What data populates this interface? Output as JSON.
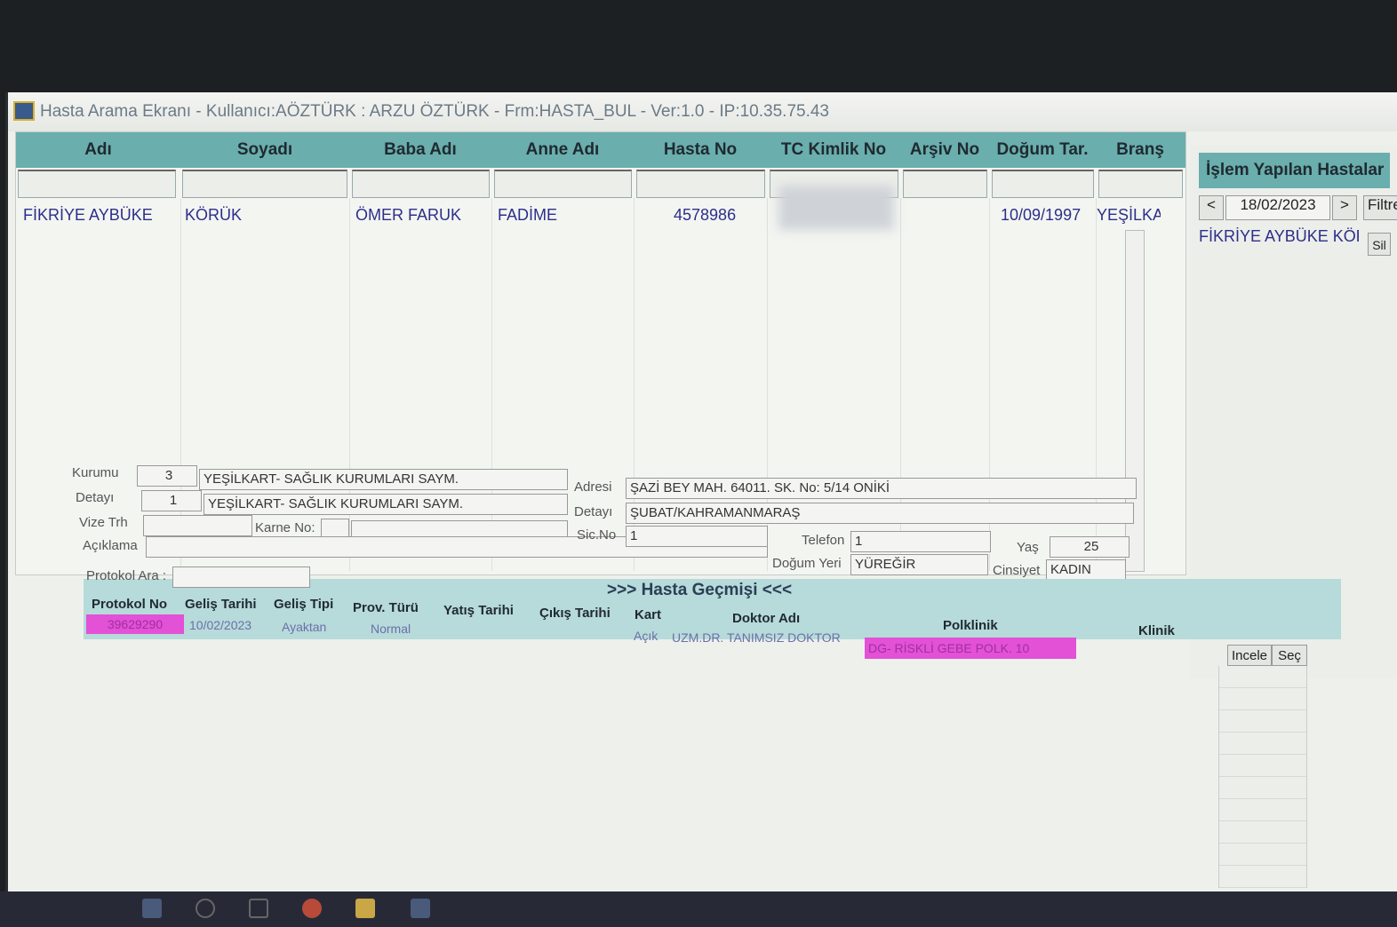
{
  "window": {
    "title": "Hasta Arama Ekranı - Kullanıcı:AÖZTÜRK : ARZU ÖZTÜRK - Frm:HASTA_BUL - Ver:1.0 - IP:10.35.75.43"
  },
  "grid": {
    "columns": [
      "Adı",
      "Soyadı",
      "Baba Adı",
      "Anne Adı",
      "Hasta No",
      "TC Kimlik No",
      "Arşiv No",
      "Doğum Tar.",
      "Branş"
    ],
    "row": {
      "adi": "FİKRİYE AYBÜKE",
      "soyadi": "KÖRÜK",
      "baba": "ÖMER FARUK",
      "anne": "FADİME",
      "hasta_no": "4578986",
      "dogum": "10/09/1997",
      "brans": "YEŞİLKA"
    }
  },
  "right_panel": {
    "title": "İşlem Yapılan Hastalar",
    "date": "18/02/2023",
    "prev": "<",
    "next": ">",
    "filter": "Filtre",
    "patient": "FİKRİYE AYBÜKE KÖRÜ",
    "delete": "Sil"
  },
  "details": {
    "kurumu_label": "Kurumu",
    "kurumu_code": "3",
    "kurumu_name": "YEŞİLKART- SAĞLIK KURUMLARI SAYM.",
    "detayi_label": "Detayı",
    "detayi_code": "1",
    "detayi_name": "YEŞİLKART- SAĞLIK KURUMLARI SAYM.",
    "vize_label": "Vize Trh",
    "karne_label": "Karne No:",
    "aciklama_label": "Açıklama",
    "adres_label": "Adresi",
    "adres": "ŞAZİ BEY MAH. 64011. SK. No: 5/14 ONİKİ",
    "adres_detay_label": "Detayı",
    "adres_detay": "ŞUBAT/KAHRAMANMARAŞ",
    "sicno_label": "Sic.No",
    "sicno": "1",
    "telefon_label": "Telefon",
    "telefon": "1",
    "yas_label": "Yaş",
    "yas": "25",
    "dogum_yeri_label": "Doğum Yeri",
    "dogum_yeri": "YÜREĞİR",
    "cinsiyet_label": "Cinsiyet",
    "cinsiyet": "KADIN",
    "protokol_ara_label": "Protokol Ara :"
  },
  "history": {
    "title": ">>> Hasta Geçmişi <<<",
    "columns": [
      "Protokol No",
      "Geliş Tarihi",
      "Geliş Tipi",
      "Prov. Türü",
      "Yatış Tarihi",
      "Çıkış Tarihi",
      "Kart",
      "Doktor Adı",
      "Polklinik",
      "Klinik"
    ],
    "row": {
      "protokol": "39629290",
      "gelis": "10/02/2023",
      "tip": "Ayaktan",
      "prov": "Normal",
      "kart": "Açık",
      "doktor": "UZM.DR. TANIMSIZ DOKTOR",
      "poliklinik": "DG- RİSKLİ GEBE POLK. 10"
    },
    "incele": "Incele",
    "sec": "Seç"
  },
  "colors": {
    "header": "#6aaeae",
    "highlight": "#e251d6",
    "text": "#2d2f8a"
  }
}
